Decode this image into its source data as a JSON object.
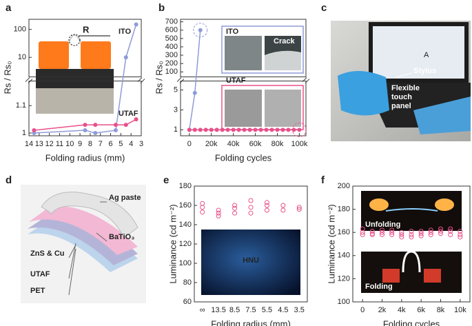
{
  "panel_labels": [
    "a",
    "b",
    "c",
    "d",
    "e",
    "f"
  ],
  "chart_data": [
    {
      "type": "line",
      "xlabel": "Folding radius (mm)",
      "ylabel": "Rs / Rs₀",
      "annotation": "R",
      "marker": "filled",
      "xlim": [
        14,
        3
      ],
      "xticks": [
        14,
        13,
        12,
        11,
        10,
        9,
        8,
        7,
        6,
        5,
        4,
        3
      ],
      "y_segments": [
        {
          "ylim": [
            0.99,
            1.19
          ],
          "yticks": [
            1,
            1.1
          ]
        },
        {
          "ylim": [
            2,
            230
          ],
          "yticks": [
            10,
            100
          ],
          "log": true
        }
      ],
      "series": [
        {
          "name": "ITO",
          "color": "#8e9bd8",
          "x": [
            13.5,
            8.5,
            7.5,
            5.5,
            4.5,
            3.5
          ],
          "values": [
            1.0,
            1.01,
            1.0,
            1.01,
            10,
            150
          ]
        },
        {
          "name": "UTAF",
          "color": "#e8508a",
          "x": [
            13.5,
            8.5,
            7.5,
            5.5,
            4.5,
            3.5
          ],
          "values": [
            1.01,
            1.03,
            1.03,
            1.03,
            1.03,
            1.05
          ]
        }
      ]
    },
    {
      "type": "line",
      "xlabel": "Folding cycles",
      "ylabel": "Rs / Rs₀",
      "annotation": "Crack",
      "marker": "filled",
      "xlim": [
        -8000,
        106000
      ],
      "xticks": [
        0,
        {
          "value": 20000,
          "label": "20k"
        },
        {
          "value": 40000,
          "label": "40k"
        },
        {
          "value": 60000,
          "label": "60k"
        },
        {
          "value": 80000,
          "label": "80k"
        },
        {
          "value": 100000,
          "label": "100k"
        }
      ],
      "y_segments": [
        {
          "ylim": [
            0.4,
            5.9
          ],
          "yticks": [
            1,
            3,
            5
          ]
        },
        {
          "ylim": [
            40,
            730
          ],
          "yticks": [
            100,
            200,
            300,
            400,
            500,
            600,
            700
          ]
        }
      ],
      "series": [
        {
          "name": "ITO",
          "color": "#8e9bd8",
          "x": [
            0,
            5000,
            10000
          ],
          "values": [
            1,
            4.7,
            600
          ]
        },
        {
          "name": "UTAF",
          "color": "#e8508a",
          "x": [
            0,
            5000,
            10000,
            15000,
            20000,
            25000,
            30000,
            35000,
            40000,
            45000,
            50000,
            55000,
            60000,
            65000,
            70000,
            75000,
            80000,
            85000,
            90000,
            95000,
            100000
          ],
          "values": [
            1,
            1,
            1,
            1,
            1,
            1,
            1,
            1,
            1,
            1,
            1,
            1,
            1,
            1,
            1,
            1,
            1,
            1,
            1,
            1,
            1
          ]
        }
      ]
    },
    {
      "type": "scatter",
      "xlabel": "Folding radius (mm)",
      "ylabel": "Luminance (cd m⁻²)",
      "annotation": "HNU",
      "marker": "open",
      "categories": [
        "∞",
        "13.5",
        "8.5",
        "7.5",
        "5.5",
        "4.5",
        "3.5"
      ],
      "ylim": [
        60,
        180
      ],
      "yticks": [
        60,
        80,
        100,
        120,
        140,
        160,
        180
      ],
      "series": [
        {
          "color": "#e8508a",
          "values": [
            162,
            155,
            160,
            165,
            163,
            160,
            158
          ]
        },
        {
          "color": "#e8508a",
          "values": [
            158,
            152,
            157,
            158,
            160,
            155,
            156
          ]
        },
        {
          "color": "#e8508a",
          "values": [
            153,
            149,
            152,
            152,
            155,
            null,
            null
          ]
        }
      ]
    },
    {
      "type": "scatter",
      "xlabel": "Folding cycles",
      "ylabel": "Luminance (cd m⁻²)",
      "annotations": [
        "Unfolding",
        "Folding"
      ],
      "marker": "open",
      "xlim": [
        -1000,
        11000
      ],
      "xticks": [
        0,
        {
          "value": 2000,
          "label": "2k"
        },
        {
          "value": 4000,
          "label": "4k"
        },
        {
          "value": 6000,
          "label": "6k"
        },
        {
          "value": 8000,
          "label": "8k"
        },
        {
          "value": 10000,
          "label": "10k"
        }
      ],
      "ylim": [
        100,
        200
      ],
      "yticks": [
        100,
        120,
        140,
        160,
        180,
        200
      ],
      "series": [
        {
          "color": "#e8508a",
          "x": [
            0,
            1000,
            2000,
            3000,
            4000,
            5000,
            6000,
            7000,
            8000,
            9000,
            10000
          ],
          "values": [
            163,
            161,
            162,
            162,
            160,
            161,
            161,
            162,
            163,
            163,
            161
          ]
        },
        {
          "color": "#e8508a",
          "x": [
            0,
            1000,
            2000,
            3000,
            4000,
            5000,
            6000,
            7000,
            8000,
            9000,
            10000
          ],
          "values": [
            160,
            159,
            160,
            160,
            158,
            158,
            159,
            160,
            161,
            161,
            158
          ]
        },
        {
          "color": "#e8508a",
          "x": [
            0,
            1000,
            2000,
            3000,
            4000,
            5000,
            6000,
            7000,
            8000,
            9000,
            10000
          ],
          "values": [
            158,
            158,
            158,
            158,
            156,
            156,
            157,
            158,
            159,
            158,
            156
          ]
        }
      ]
    }
  ],
  "panel_c": {
    "stylus": "Stylus",
    "panel": [
      "Flexible",
      "touch",
      "panel"
    ]
  },
  "panel_d": {
    "layers": [
      "Ag paste",
      "BaTiO₃",
      "ZnS & Cu",
      "UTAF",
      "PET"
    ]
  }
}
